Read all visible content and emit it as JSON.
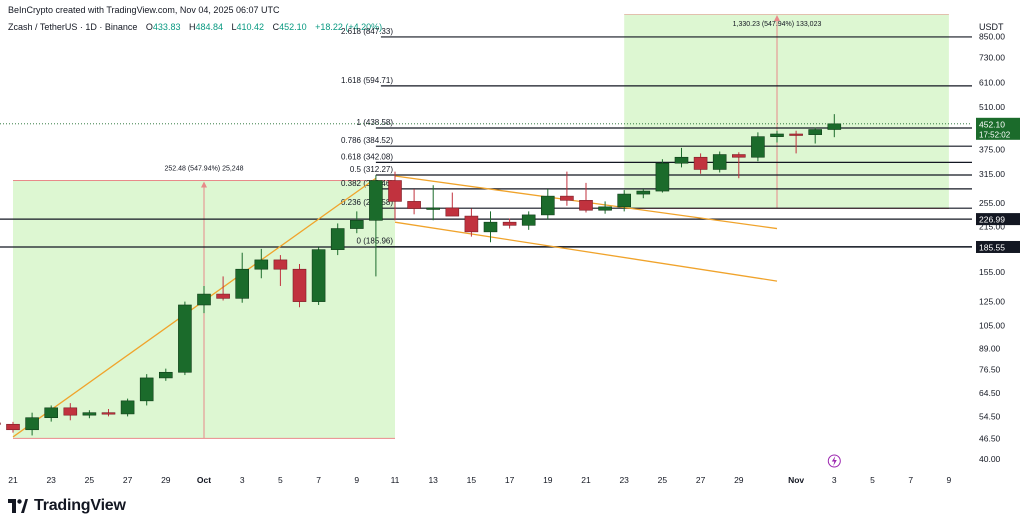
{
  "credit": "BeInCrypto created with TradingView.com, Nov 04, 2025 06:07 UTC",
  "symbol": {
    "name": "Zcash / TetherUS · 1D · Binance",
    "open_label": "O",
    "open": "433.83",
    "high_label": "H",
    "high": "484.84",
    "low_label": "L",
    "low": "410.42",
    "close_label": "C",
    "close": "452.10",
    "change": "+18.22 (+4.20%)"
  },
  "currency": "USDT",
  "logo_text": "TradingView",
  "colors": {
    "bull": "#1b6b2b",
    "bear": "#c1323e",
    "wedge": "#f0a32b",
    "zone_fill": "#ddf7d2",
    "measure": "#e88a8a",
    "last_price_bg": "#1b6b2b"
  },
  "chart_data": {
    "type": "candlestick",
    "y_scale": "log",
    "ylim": [
      37,
      1000
    ],
    "y_ticks": [
      "850.00",
      "730.00",
      "610.00",
      "510.00",
      "375.00",
      "315.00",
      "255.00",
      "215.00",
      "155.00",
      "125.00",
      "105.00",
      "89.00",
      "76.50",
      "64.50",
      "54.50",
      "46.50",
      "40.00"
    ],
    "x_ticks": [
      {
        "label": "21",
        "date": "2025-09-21"
      },
      {
        "label": "23",
        "date": "2025-09-23"
      },
      {
        "label": "25",
        "date": "2025-09-25"
      },
      {
        "label": "27",
        "date": "2025-09-27"
      },
      {
        "label": "29",
        "date": "2025-09-29"
      },
      {
        "label": "Oct",
        "date": "2025-10-01"
      },
      {
        "label": "3",
        "date": "2025-10-03"
      },
      {
        "label": "5",
        "date": "2025-10-05"
      },
      {
        "label": "7",
        "date": "2025-10-07"
      },
      {
        "label": "9",
        "date": "2025-10-09"
      },
      {
        "label": "11",
        "date": "2025-10-11"
      },
      {
        "label": "13",
        "date": "2025-10-13"
      },
      {
        "label": "15",
        "date": "2025-10-15"
      },
      {
        "label": "17",
        "date": "2025-10-17"
      },
      {
        "label": "19",
        "date": "2025-10-19"
      },
      {
        "label": "21",
        "date": "2025-10-21"
      },
      {
        "label": "23",
        "date": "2025-10-23"
      },
      {
        "label": "25",
        "date": "2025-10-25"
      },
      {
        "label": "27",
        "date": "2025-10-27"
      },
      {
        "label": "29",
        "date": "2025-10-29"
      },
      {
        "label": "Nov",
        "date": "2025-11-01"
      },
      {
        "label": "3",
        "date": "2025-11-03"
      },
      {
        "label": "5",
        "date": "2025-11-05"
      },
      {
        "label": "7",
        "date": "2025-11-07"
      },
      {
        "label": "9",
        "date": "2025-11-09"
      }
    ],
    "candles": [
      {
        "date": "2025-09-20",
        "o": 52.0,
        "h": 52.6,
        "l": 50.8,
        "c": 51.5
      },
      {
        "date": "2025-09-21",
        "o": 51.5,
        "h": 52.4,
        "l": 48.5,
        "c": 49.5
      },
      {
        "date": "2025-09-22",
        "o": 49.5,
        "h": 56.0,
        "l": 47.5,
        "c": 54.0
      },
      {
        "date": "2025-09-23",
        "o": 54.0,
        "h": 59.0,
        "l": 52.5,
        "c": 58.0
      },
      {
        "date": "2025-09-24",
        "o": 58.0,
        "h": 60.0,
        "l": 53.0,
        "c": 55.0
      },
      {
        "date": "2025-09-25",
        "o": 55.0,
        "h": 57.0,
        "l": 53.8,
        "c": 56.0
      },
      {
        "date": "2025-09-26",
        "o": 56.0,
        "h": 57.5,
        "l": 54.5,
        "c": 55.5
      },
      {
        "date": "2025-09-27",
        "o": 55.5,
        "h": 62.0,
        "l": 54.5,
        "c": 61.0
      },
      {
        "date": "2025-09-28",
        "o": 61.0,
        "h": 74.0,
        "l": 59.0,
        "c": 72.0
      },
      {
        "date": "2025-09-29",
        "o": 72.0,
        "h": 77.0,
        "l": 70.5,
        "c": 75.0
      },
      {
        "date": "2025-09-30",
        "o": 75.0,
        "h": 125.0,
        "l": 73.5,
        "c": 122.0
      },
      {
        "date": "2025-10-01",
        "o": 122.0,
        "h": 140.0,
        "l": 115.0,
        "c": 132.0
      },
      {
        "date": "2025-10-02",
        "o": 132.0,
        "h": 150.0,
        "l": 126.0,
        "c": 128.0
      },
      {
        "date": "2025-10-03",
        "o": 128.0,
        "h": 178.0,
        "l": 124.0,
        "c": 158.0
      },
      {
        "date": "2025-10-04",
        "o": 158.0,
        "h": 183.0,
        "l": 148.0,
        "c": 169.0
      },
      {
        "date": "2025-10-05",
        "o": 169.0,
        "h": 175.0,
        "l": 140.0,
        "c": 158.0
      },
      {
        "date": "2025-10-06",
        "o": 158.0,
        "h": 164.0,
        "l": 120.0,
        "c": 125.0
      },
      {
        "date": "2025-10-07",
        "o": 125.0,
        "h": 185.0,
        "l": 122.0,
        "c": 182.0
      },
      {
        "date": "2025-10-08",
        "o": 182.0,
        "h": 220.0,
        "l": 175.0,
        "c": 212.0
      },
      {
        "date": "2025-10-09",
        "o": 212.0,
        "h": 240.0,
        "l": 205.0,
        "c": 225.0
      },
      {
        "date": "2025-10-10",
        "o": 225.0,
        "h": 312.0,
        "l": 150.0,
        "c": 300.0
      },
      {
        "date": "2025-10-11",
        "o": 300.0,
        "h": 320.0,
        "l": 225.0,
        "c": 258.0
      },
      {
        "date": "2025-10-12",
        "o": 258.0,
        "h": 282.0,
        "l": 235.0,
        "c": 245.0
      },
      {
        "date": "2025-10-13",
        "o": 245.0,
        "h": 290.0,
        "l": 225.0,
        "c": 246.0
      },
      {
        "date": "2025-10-14",
        "o": 246.0,
        "h": 275.0,
        "l": 232.0,
        "c": 232.0
      },
      {
        "date": "2025-10-15",
        "o": 232.0,
        "h": 245.0,
        "l": 200.0,
        "c": 207.0
      },
      {
        "date": "2025-10-16",
        "o": 207.0,
        "h": 240.0,
        "l": 192.0,
        "c": 222.0
      },
      {
        "date": "2025-10-17",
        "o": 222.0,
        "h": 228.0,
        "l": 212.0,
        "c": 217.0
      },
      {
        "date": "2025-10-18",
        "o": 217.0,
        "h": 240.0,
        "l": 210.0,
        "c": 234.0
      },
      {
        "date": "2025-10-19",
        "o": 234.0,
        "h": 282.0,
        "l": 226.0,
        "c": 268.0
      },
      {
        "date": "2025-10-20",
        "o": 268.0,
        "h": 320.0,
        "l": 250.0,
        "c": 260.0
      },
      {
        "date": "2025-10-21",
        "o": 260.0,
        "h": 295.0,
        "l": 238.0,
        "c": 242.0
      },
      {
        "date": "2025-10-22",
        "o": 242.0,
        "h": 258.0,
        "l": 236.0,
        "c": 248.0
      },
      {
        "date": "2025-10-23",
        "o": 248.0,
        "h": 280.0,
        "l": 240.0,
        "c": 272.0
      },
      {
        "date": "2025-10-24",
        "o": 272.0,
        "h": 282.0,
        "l": 264.0,
        "c": 278.0
      },
      {
        "date": "2025-10-25",
        "o": 278.0,
        "h": 350.0,
        "l": 275.0,
        "c": 340.0
      },
      {
        "date": "2025-10-26",
        "o": 340.0,
        "h": 380.0,
        "l": 330.0,
        "c": 355.0
      },
      {
        "date": "2025-10-27",
        "o": 355.0,
        "h": 365.0,
        "l": 315.0,
        "c": 325.0
      },
      {
        "date": "2025-10-28",
        "o": 325.0,
        "h": 370.0,
        "l": 318.0,
        "c": 362.0
      },
      {
        "date": "2025-10-29",
        "o": 362.0,
        "h": 368.0,
        "l": 305.0,
        "c": 355.0
      },
      {
        "date": "2025-10-30",
        "o": 355.0,
        "h": 425.0,
        "l": 345.0,
        "c": 412.0
      },
      {
        "date": "2025-10-31",
        "o": 412.0,
        "h": 430.0,
        "l": 395.0,
        "c": 420.0
      },
      {
        "date": "2025-11-01",
        "o": 420.0,
        "h": 430.0,
        "l": 365.0,
        "c": 418.0
      },
      {
        "date": "2025-11-02",
        "o": 418.0,
        "h": 440.0,
        "l": 392.0,
        "c": 433.8
      },
      {
        "date": "2025-11-03",
        "o": 433.83,
        "h": 484.84,
        "l": 410.42,
        "c": 452.1
      }
    ],
    "fib_levels": [
      {
        "label": "2.618 (847.33)",
        "value": 847.33
      },
      {
        "label": "1.618 (594.71)",
        "value": 594.71
      },
      {
        "label": "1 (438.58)",
        "value": 438.58
      },
      {
        "label": "0.786 (384.52)",
        "value": 384.52
      },
      {
        "label": "0.618 (342.08)",
        "value": 342.08
      },
      {
        "label": "0.5 (312.27)",
        "value": 312.27
      },
      {
        "label": "0.382 (282.46)",
        "value": 282.46
      },
      {
        "label": "0.236 (245.58)",
        "value": 245.58
      },
      {
        "label": "0 (185.96)",
        "value": 185.96
      }
    ],
    "support_lines": [
      {
        "value": 226.99,
        "label": "226.99"
      },
      {
        "value": 185.55,
        "label": "185.55"
      }
    ],
    "last_price": {
      "value": 452.1,
      "label": "452.10",
      "countdown": "17:52:02"
    },
    "wedge": [
      {
        "from": {
          "date": "2025-10-11",
          "v": 310
        },
        "to": {
          "date": "2025-10-31",
          "v": 212
        }
      },
      {
        "from": {
          "date": "2025-10-11",
          "v": 222
        },
        "to": {
          "date": "2025-10-31",
          "v": 145
        }
      }
    ],
    "pole_line": {
      "from": {
        "date": "2025-09-21",
        "v": 47
      },
      "to": {
        "date": "2025-10-10",
        "v": 305
      }
    },
    "measure_zones": [
      {
        "start": "2025-09-21",
        "end": "2025-10-11",
        "low": 46.5,
        "high": 300,
        "marker_date": "2025-10-01",
        "label": "252.48 (547.94%) 25,248"
      },
      {
        "start": "2025-10-23",
        "end": "2025-11-09",
        "low": 245,
        "high": 1050,
        "marker_date": "2025-10-31",
        "label": "1,330.23 (547.94%) 133,023"
      }
    ]
  }
}
